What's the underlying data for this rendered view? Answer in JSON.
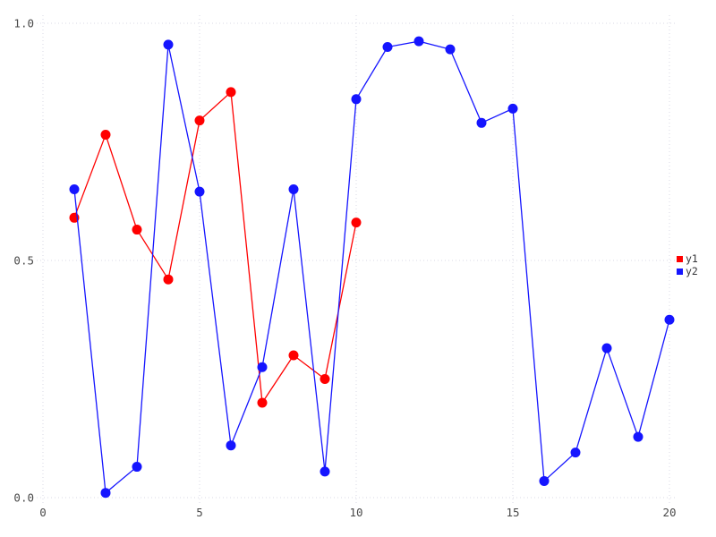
{
  "chart_data": {
    "type": "line",
    "title": "",
    "xlabel": "",
    "ylabel": "",
    "xlim": [
      0,
      20
    ],
    "ylim": [
      0.0,
      1.0
    ],
    "grid": "dotted",
    "legend_position": "right-outside-middle",
    "background_color": "#ffffff",
    "gridline_color": "#dadae4",
    "tick_label_color": "#4a4a4a",
    "xticks": {
      "values": [
        0,
        5,
        10,
        15,
        20
      ],
      "labels": [
        "0",
        "5",
        "10",
        "15",
        "20"
      ]
    },
    "yticks": {
      "values": [
        0.0,
        0.5,
        1.0
      ],
      "labels": [
        "0.0",
        "0.5",
        "1.0"
      ]
    },
    "series": [
      {
        "name": "y1",
        "color": "#ff0000",
        "marker": "circle",
        "x": [
          1,
          2,
          3,
          4,
          5,
          6,
          7,
          8,
          9,
          10
        ],
        "values": [
          0.59,
          0.765,
          0.565,
          0.46,
          0.795,
          0.855,
          0.2,
          0.3,
          0.25,
          0.58
        ]
      },
      {
        "name": "y2",
        "color": "#1515ff",
        "marker": "circle",
        "x": [
          1,
          2,
          3,
          4,
          5,
          6,
          7,
          8,
          9,
          10,
          11,
          12,
          13,
          14,
          15,
          16,
          17,
          18,
          19,
          20
        ],
        "values": [
          0.65,
          0.01,
          0.065,
          0.955,
          0.645,
          0.11,
          0.275,
          0.65,
          0.055,
          0.84,
          0.95,
          0.962,
          0.945,
          0.79,
          0.82,
          0.035,
          0.095,
          0.315,
          0.128,
          0.375
        ]
      }
    ]
  }
}
